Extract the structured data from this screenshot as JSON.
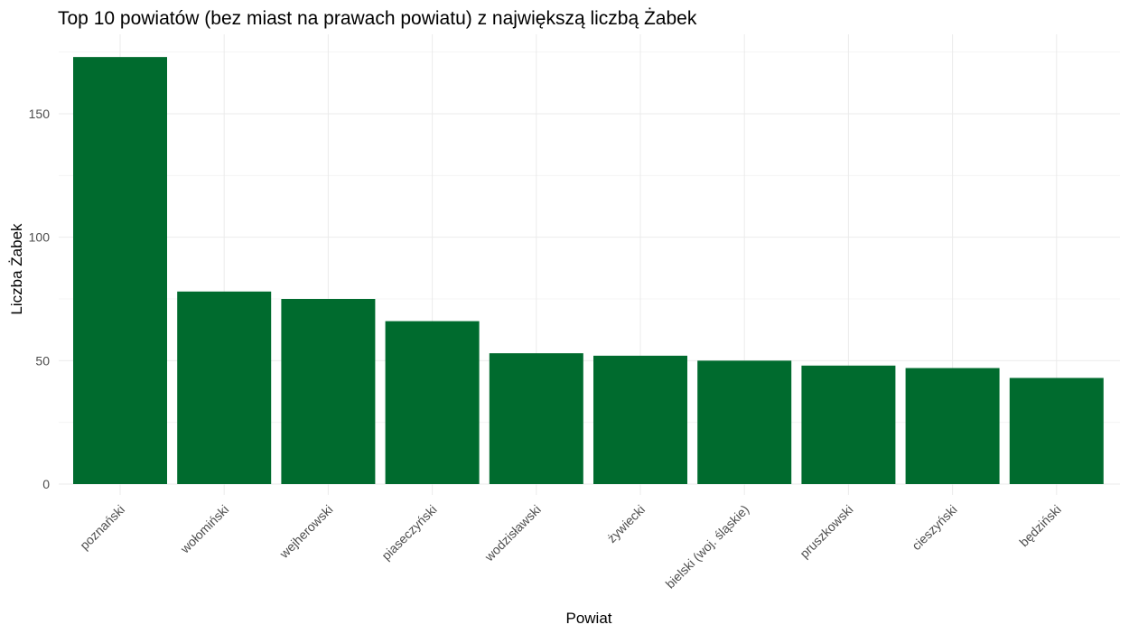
{
  "chart_data": {
    "type": "bar",
    "title": "Top 10 powiatów (bez miast na prawach powiatu) z największą liczbą Żabek",
    "xlabel": "Powiat",
    "ylabel": "Liczba Żabek",
    "categories": [
      "poznański",
      "wołomiński",
      "wejherowski",
      "piaseczyński",
      "wodzisławski",
      "żywiecki",
      "bielski (woj. śląskie)",
      "pruszkowski",
      "cieszyński",
      "będziński"
    ],
    "values": [
      173,
      78,
      75,
      66,
      53,
      52,
      50,
      48,
      47,
      43
    ],
    "ylim": [
      0,
      175
    ],
    "yticks": [
      0,
      50,
      100,
      150
    ],
    "bar_color": "#006B2E",
    "grid": true,
    "theme": "minimal"
  }
}
